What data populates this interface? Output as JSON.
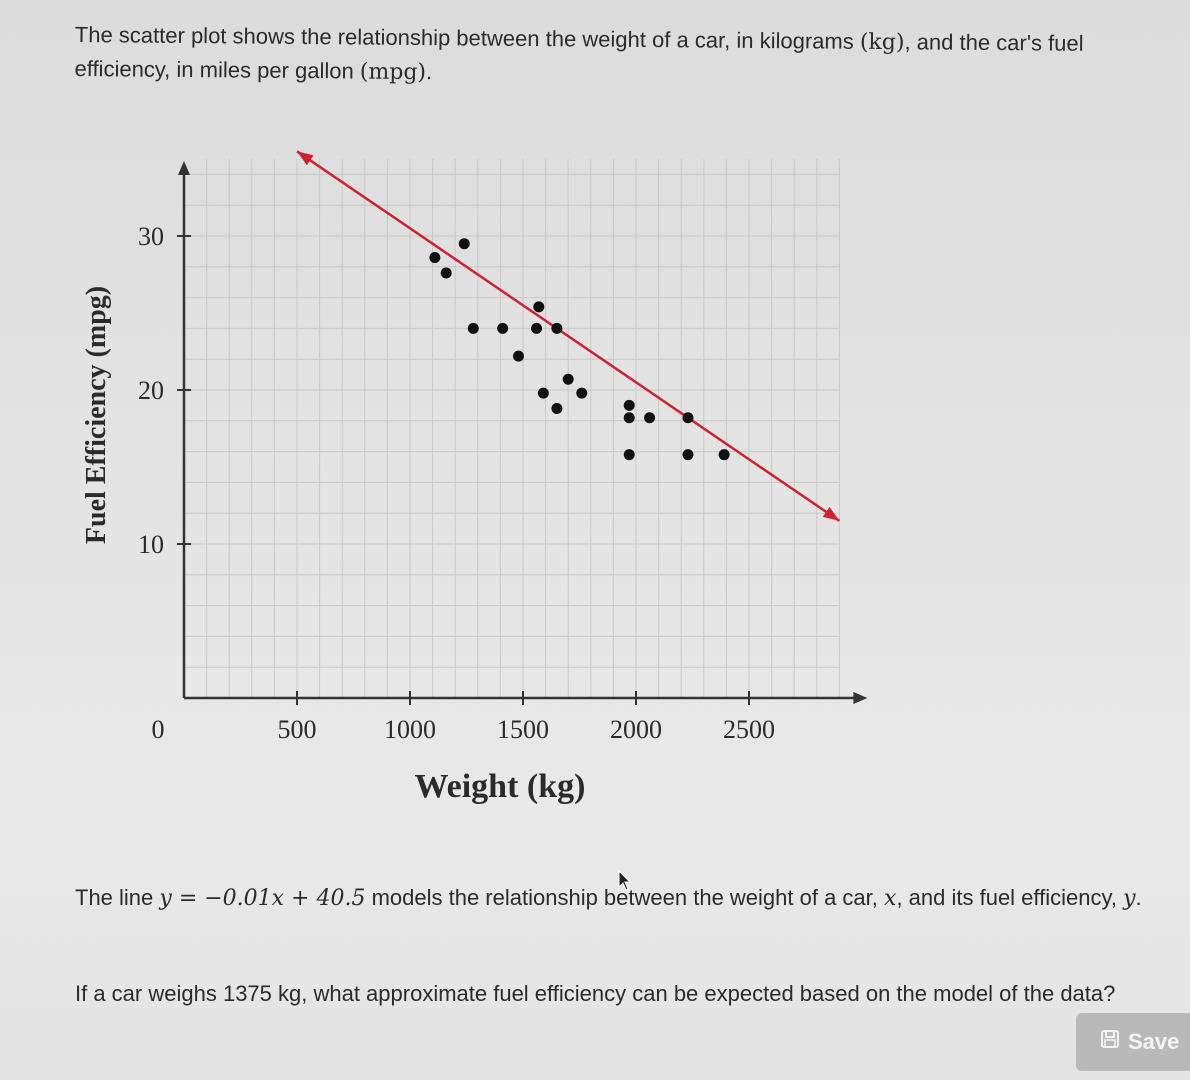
{
  "intro": {
    "part1": "The scatter plot shows the relationship between the weight of a car, in kilograms ",
    "unit_kg": "(kg)",
    "part2": ", and the car's fuel efficiency, in miles per gallon ",
    "unit_mpg": "(mpg)",
    "part3": "."
  },
  "chart_data": {
    "type": "scatter",
    "xlabel": "Weight (kg)",
    "ylabel": "Fuel Efficiency (mpg)",
    "x_ticks": [
      "0",
      "500",
      "1000",
      "1500",
      "2000",
      "2500"
    ],
    "y_ticks": [
      "10",
      "20",
      "30"
    ],
    "xlim": [
      0,
      2900
    ],
    "ylim": [
      0,
      35
    ],
    "grid": true,
    "points": [
      {
        "x": 1110,
        "y": 28.6
      },
      {
        "x": 1160,
        "y": 27.6
      },
      {
        "x": 1240,
        "y": 29.5
      },
      {
        "x": 1280,
        "y": 24.0
      },
      {
        "x": 1410,
        "y": 24.0
      },
      {
        "x": 1480,
        "y": 22.2
      },
      {
        "x": 1570,
        "y": 25.4
      },
      {
        "x": 1560,
        "y": 24.0
      },
      {
        "x": 1650,
        "y": 24.0
      },
      {
        "x": 1590,
        "y": 19.8
      },
      {
        "x": 1650,
        "y": 18.8
      },
      {
        "x": 1700,
        "y": 20.7
      },
      {
        "x": 1760,
        "y": 19.8
      },
      {
        "x": 1970,
        "y": 19.0
      },
      {
        "x": 1970,
        "y": 18.2
      },
      {
        "x": 2060,
        "y": 18.2
      },
      {
        "x": 1970,
        "y": 15.8
      },
      {
        "x": 2230,
        "y": 18.2
      },
      {
        "x": 2230,
        "y": 15.8
      },
      {
        "x": 2390,
        "y": 15.8
      }
    ],
    "trend_line": {
      "slope": -0.01,
      "intercept": 40.5,
      "x_from": 500,
      "x_to": 2900,
      "color": "#cc2233"
    }
  },
  "model_text": {
    "pre": "The line ",
    "equation": "y = −0.01x + 40.5",
    "mid": " models the relationship between the weight of a car, ",
    "var_x": "x",
    "mid2": ", and its fuel efficiency, ",
    "var_y": "y",
    "end": "."
  },
  "question": "If a car weighs 1375 kg, what approximate fuel efficiency can be expected based on the model of the data?",
  "save_button": {
    "label": "Save",
    "icon": "save-icon"
  }
}
